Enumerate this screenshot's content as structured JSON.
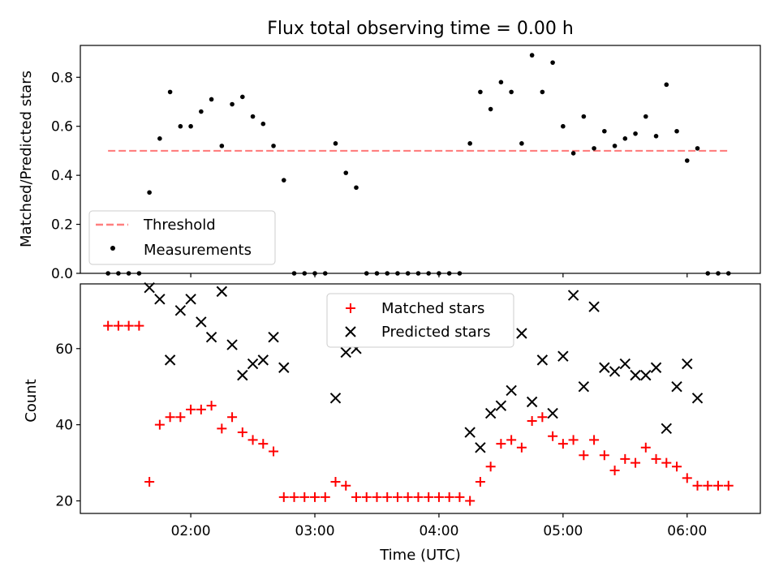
{
  "chart_data": [
    {
      "type": "scatter",
      "title": "Flux total observing time = 0.00 h",
      "ylabel": "Matched/Predicted stars",
      "ylim": [
        0,
        0.93
      ],
      "xlim": [
        1.11,
        6.59
      ],
      "yticks": [
        0.0,
        0.2,
        0.4,
        0.6,
        0.8
      ],
      "ytick_labels": [
        "0.0",
        "0.2",
        "0.4",
        "0.6",
        "0.8"
      ],
      "grid": false,
      "legend": "lower-left",
      "threshold": {
        "name": "Threshold",
        "value": 0.5,
        "color": "#ff7f7f",
        "style": "dashed",
        "x_range": [
          "01:20",
          "06:20"
        ]
      },
      "series": [
        {
          "name": "Measurements",
          "color": "#000000",
          "marker": "dot",
          "x": [
            "01:20",
            "01:25",
            "01:30",
            "01:35",
            "01:40",
            "01:45",
            "01:50",
            "01:55",
            "02:00",
            "02:05",
            "02:10",
            "02:15",
            "02:20",
            "02:25",
            "02:30",
            "02:35",
            "02:40",
            "02:45",
            "02:50",
            "02:55",
            "03:00",
            "03:05",
            "03:10",
            "03:15",
            "03:20",
            "03:25",
            "03:30",
            "03:35",
            "03:40",
            "03:45",
            "03:50",
            "03:55",
            "04:00",
            "04:05",
            "04:10",
            "04:15",
            "04:20",
            "04:25",
            "04:30",
            "04:35",
            "04:40",
            "04:45",
            "04:50",
            "04:55",
            "05:00",
            "05:05",
            "05:10",
            "05:15",
            "05:20",
            "05:25",
            "05:30",
            "05:35",
            "05:40",
            "05:45",
            "05:50",
            "05:55",
            "06:00",
            "06:05",
            "06:10",
            "06:15",
            "06:20"
          ],
          "y": [
            0,
            0,
            0,
            0,
            0.33,
            0.55,
            0.74,
            0.6,
            0.6,
            0.66,
            0.71,
            0.52,
            0.69,
            0.72,
            0.64,
            0.61,
            0.52,
            0.38,
            0,
            0,
            0,
            0,
            0.53,
            0.41,
            0.35,
            0,
            0,
            0,
            0,
            0,
            0,
            0,
            0,
            0,
            0,
            0.53,
            0.74,
            0.67,
            0.78,
            0.74,
            0.53,
            0.89,
            0.74,
            0.86,
            0.6,
            0.49,
            0.64,
            0.51,
            0.58,
            0.52,
            0.55,
            0.57,
            0.64,
            0.56,
            0.77,
            0.58,
            0.46,
            0.51,
            0,
            0,
            0
          ]
        }
      ]
    },
    {
      "type": "scatter",
      "xlabel": "Time (UTC)",
      "ylabel": "Count",
      "ylim": [
        16.7,
        77
      ],
      "xlim": [
        1.11,
        6.59
      ],
      "yticks": [
        20,
        40,
        60
      ],
      "ytick_labels": [
        "20",
        "40",
        "60"
      ],
      "xticks": [
        2,
        3,
        4,
        5,
        6
      ],
      "xtick_labels": [
        "02:00",
        "03:00",
        "04:00",
        "05:00",
        "06:00"
      ],
      "grid": false,
      "legend": "upper-center",
      "series": [
        {
          "name": "Matched stars",
          "color": "#ff0000",
          "marker": "plus",
          "x": [
            "01:20",
            "01:25",
            "01:30",
            "01:35",
            "01:40",
            "01:45",
            "01:50",
            "01:55",
            "02:00",
            "02:05",
            "02:10",
            "02:15",
            "02:20",
            "02:25",
            "02:30",
            "02:35",
            "02:40",
            "02:45",
            "02:50",
            "02:55",
            "03:00",
            "03:05",
            "03:10",
            "03:15",
            "03:20",
            "03:25",
            "03:30",
            "03:35",
            "03:40",
            "03:45",
            "03:50",
            "03:55",
            "04:00",
            "04:05",
            "04:10",
            "04:15",
            "04:20",
            "04:25",
            "04:30",
            "04:35",
            "04:40",
            "04:45",
            "04:50",
            "04:55",
            "05:00",
            "05:05",
            "05:10",
            "05:15",
            "05:20",
            "05:25",
            "05:30",
            "05:35",
            "05:40",
            "05:45",
            "05:50",
            "05:55",
            "06:00",
            "06:05",
            "06:10",
            "06:15",
            "06:20"
          ],
          "y": [
            66,
            66,
            66,
            66,
            25,
            40,
            42,
            42,
            44,
            44,
            45,
            39,
            42,
            38,
            36,
            35,
            33,
            21,
            21,
            21,
            21,
            21,
            25,
            24,
            21,
            21,
            21,
            21,
            21,
            21,
            21,
            21,
            21,
            21,
            21,
            20,
            25,
            29,
            35,
            36,
            34,
            41,
            42,
            37,
            35,
            36,
            32,
            36,
            32,
            28,
            31,
            30,
            34,
            31,
            30,
            29,
            26,
            24,
            24,
            24,
            24
          ]
        },
        {
          "name": "Predicted stars",
          "color": "#000000",
          "marker": "x",
          "x": [
            "01:40",
            "01:45",
            "01:50",
            "01:55",
            "02:00",
            "02:05",
            "02:10",
            "02:15",
            "02:20",
            "02:25",
            "02:30",
            "02:35",
            "02:40",
            "02:45",
            "03:10",
            "03:15",
            "03:20",
            "04:15",
            "04:20",
            "04:25",
            "04:30",
            "04:35",
            "04:40",
            "04:45",
            "04:50",
            "04:55",
            "05:00",
            "05:05",
            "05:10",
            "05:15",
            "05:20",
            "05:25",
            "05:30",
            "05:35",
            "05:40",
            "05:45",
            "05:50",
            "05:55",
            "06:00",
            "06:05"
          ],
          "y": [
            76,
            73,
            57,
            70,
            73,
            67,
            63,
            75,
            61,
            53,
            56,
            57,
            63,
            55,
            47,
            59,
            60,
            38,
            34,
            43,
            45,
            49,
            64,
            46,
            57,
            43,
            58,
            74,
            50,
            71,
            55,
            54,
            56,
            53,
            53,
            55,
            39,
            50,
            56,
            47
          ]
        }
      ]
    }
  ]
}
